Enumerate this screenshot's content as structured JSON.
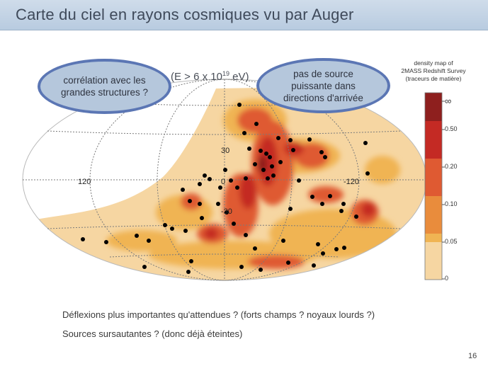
{
  "header": {
    "title": "Carte du ciel en rayons cosmiques vu par Auger"
  },
  "bubbles": {
    "left": "corrélation avec les grandes structures ?",
    "right": "pas de source puissante dans directions d'arrivée"
  },
  "energy": {
    "prefix": "(E > 6 x 10",
    "exp": "19",
    "suffix": " eV)"
  },
  "map": {
    "grid_labels": {
      "lon_left": "120",
      "lon_center": "0",
      "lon_right": "-120",
      "lat_top": "30",
      "lat_bottom": "-30"
    }
  },
  "legend": {
    "title_line1": "density map of",
    "title_line2": "2MASS Redshift Survey",
    "title_line3": "(traceurs de matière)",
    "labels": [
      "∞",
      "0.50",
      "0.20",
      "0.10",
      "0.05",
      "0"
    ],
    "colors": [
      "#8e1f1e",
      "#c42a24",
      "#df5a32",
      "#e98c3c",
      "#f0b453",
      "#f6d6a2"
    ]
  },
  "notes": [
    "Déflexions plus importantes qu'attendues ? (forts champs ? noyaux lourds ?)",
    "Sources sursautantes ? (donc déjà éteintes)"
  ],
  "page_number": "16"
}
